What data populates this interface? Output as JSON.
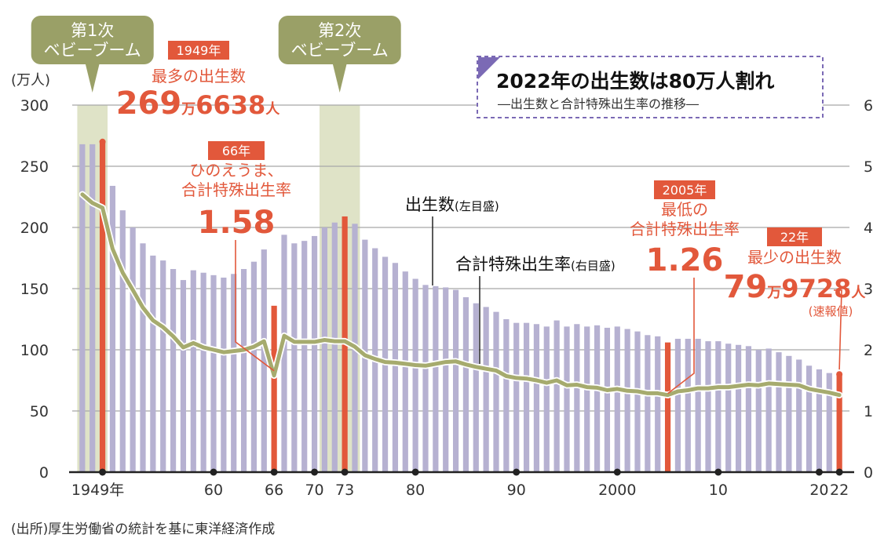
{
  "chart_data": {
    "type": "bar",
    "title": "2022年の出生数は80万人割れ",
    "subtitle": "―出生数と合計特殊出生率の推移―",
    "left_unit": "(万人)",
    "left_ylim": [
      0,
      300
    ],
    "left_ticks": [
      "0",
      "50",
      "100",
      "150",
      "200",
      "250",
      "300"
    ],
    "right_ylim": [
      0,
      6
    ],
    "right_ticks": [
      "0",
      "1",
      "2",
      "3",
      "4",
      "5",
      "6"
    ],
    "x_tick_labels": [
      {
        "year": 1949,
        "label": "1949年"
      },
      {
        "year": 1960,
        "label": "60"
      },
      {
        "year": 1966,
        "label": "66"
      },
      {
        "year": 1970,
        "label": "70"
      },
      {
        "year": 1973,
        "label": "73"
      },
      {
        "year": 1980,
        "label": "80"
      },
      {
        "year": 1990,
        "label": "90"
      },
      {
        "year": 2000,
        "label": "2000"
      },
      {
        "year": 2010,
        "label": "10"
      },
      {
        "year": 2020,
        "label": "20"
      },
      {
        "year": 2022,
        "label": "22"
      }
    ],
    "bars": {
      "name": "出生数",
      "name_note": "(左目盛)",
      "unit": "万人",
      "years": [
        1947,
        1948,
        1949,
        1950,
        1951,
        1952,
        1953,
        1954,
        1955,
        1956,
        1957,
        1958,
        1959,
        1960,
        1961,
        1962,
        1963,
        1964,
        1965,
        1966,
        1967,
        1968,
        1969,
        1970,
        1971,
        1972,
        1973,
        1974,
        1975,
        1976,
        1977,
        1978,
        1979,
        1980,
        1981,
        1982,
        1983,
        1984,
        1985,
        1986,
        1987,
        1988,
        1989,
        1990,
        1991,
        1992,
        1993,
        1994,
        1995,
        1996,
        1997,
        1998,
        1999,
        2000,
        2001,
        2002,
        2003,
        2004,
        2005,
        2006,
        2007,
        2008,
        2009,
        2010,
        2011,
        2012,
        2013,
        2014,
        2015,
        2016,
        2017,
        2018,
        2019,
        2020,
        2021,
        2022
      ],
      "values": [
        268,
        268,
        270,
        234,
        214,
        200,
        187,
        177,
        173,
        166,
        157,
        165,
        163,
        161,
        159,
        162,
        166,
        172,
        182,
        136,
        194,
        187,
        189,
        193,
        200,
        204,
        209,
        203,
        190,
        183,
        176,
        171,
        164,
        158,
        153,
        152,
        151,
        149,
        143,
        138,
        135,
        131,
        125,
        122,
        122,
        121,
        119,
        124,
        119,
        121,
        119,
        120,
        118,
        119,
        117,
        115,
        112,
        111,
        106,
        109,
        109,
        109,
        107,
        107,
        105,
        104,
        103,
        100,
        101,
        98,
        95,
        92,
        87,
        84,
        81,
        80
      ],
      "highlight_years": [
        1949,
        1966,
        1973,
        2005,
        2022
      ]
    },
    "line": {
      "name": "合計特殊出生率",
      "name_note": "(右目盛)",
      "years": [
        1947,
        1948,
        1949,
        1950,
        1951,
        1952,
        1953,
        1954,
        1955,
        1956,
        1957,
        1958,
        1959,
        1960,
        1961,
        1962,
        1963,
        1964,
        1965,
        1966,
        1967,
        1968,
        1969,
        1970,
        1971,
        1972,
        1973,
        1974,
        1975,
        1976,
        1977,
        1978,
        1979,
        1980,
        1981,
        1982,
        1983,
        1984,
        1985,
        1986,
        1987,
        1988,
        1989,
        1990,
        1991,
        1992,
        1993,
        1994,
        1995,
        1996,
        1997,
        1998,
        1999,
        2000,
        2001,
        2002,
        2003,
        2004,
        2005,
        2006,
        2007,
        2008,
        2009,
        2010,
        2011,
        2012,
        2013,
        2014,
        2015,
        2016,
        2017,
        2018,
        2019,
        2020,
        2021,
        2022
      ],
      "values": [
        4.54,
        4.4,
        4.32,
        3.65,
        3.26,
        2.98,
        2.69,
        2.48,
        2.37,
        2.22,
        2.04,
        2.11,
        2.04,
        2.0,
        1.96,
        1.98,
        2.0,
        2.05,
        2.14,
        1.58,
        2.23,
        2.13,
        2.13,
        2.13,
        2.16,
        2.14,
        2.14,
        2.05,
        1.91,
        1.85,
        1.8,
        1.79,
        1.77,
        1.75,
        1.74,
        1.77,
        1.8,
        1.81,
        1.76,
        1.72,
        1.69,
        1.66,
        1.57,
        1.54,
        1.53,
        1.5,
        1.46,
        1.5,
        1.42,
        1.43,
        1.39,
        1.38,
        1.34,
        1.36,
        1.33,
        1.32,
        1.29,
        1.29,
        1.26,
        1.32,
        1.34,
        1.37,
        1.37,
        1.39,
        1.39,
        1.41,
        1.43,
        1.42,
        1.45,
        1.44,
        1.43,
        1.42,
        1.36,
        1.33,
        1.3,
        1.26
      ]
    },
    "shaded_periods": [
      {
        "label_lines": [
          "第1次",
          "ベビーブーム"
        ],
        "start": 1947,
        "end": 1949
      },
      {
        "label_lines": [
          "第2次",
          "ベビーブーム"
        ],
        "start": 1971,
        "end": 1974
      }
    ],
    "annotations": [
      {
        "id": "a1949",
        "tag": "1949年",
        "lines": [
          "最多の出生数"
        ],
        "big": "269",
        "unit1": "万",
        "big2": "6638",
        "unit2": "人"
      },
      {
        "id": "a1966",
        "tag": "66年",
        "lines": [
          "ひのえうま、",
          "合計特殊出生率"
        ],
        "big": "1.58"
      },
      {
        "id": "a2005",
        "tag": "2005年",
        "lines": [
          "最低の",
          "合計特殊出生率"
        ],
        "big": "1.26"
      },
      {
        "id": "a2022",
        "tag": "22年",
        "lines": [
          "最少の出生数"
        ],
        "big": "79",
        "unit1": "万",
        "big2": "9728",
        "unit2": "人",
        "note": "(速報値)"
      }
    ],
    "source": "(出所)厚生労働省の統計を基に東洋経済作成"
  },
  "colors": {
    "bar": "#b6b1d1",
    "highlight": "#e2583b",
    "line": "#a6ab6e",
    "shade": "#dfe3c7",
    "callout": "#9aa067",
    "grid": "#a8a8a8",
    "text": "#222222",
    "accent": "#7b6ab5"
  }
}
